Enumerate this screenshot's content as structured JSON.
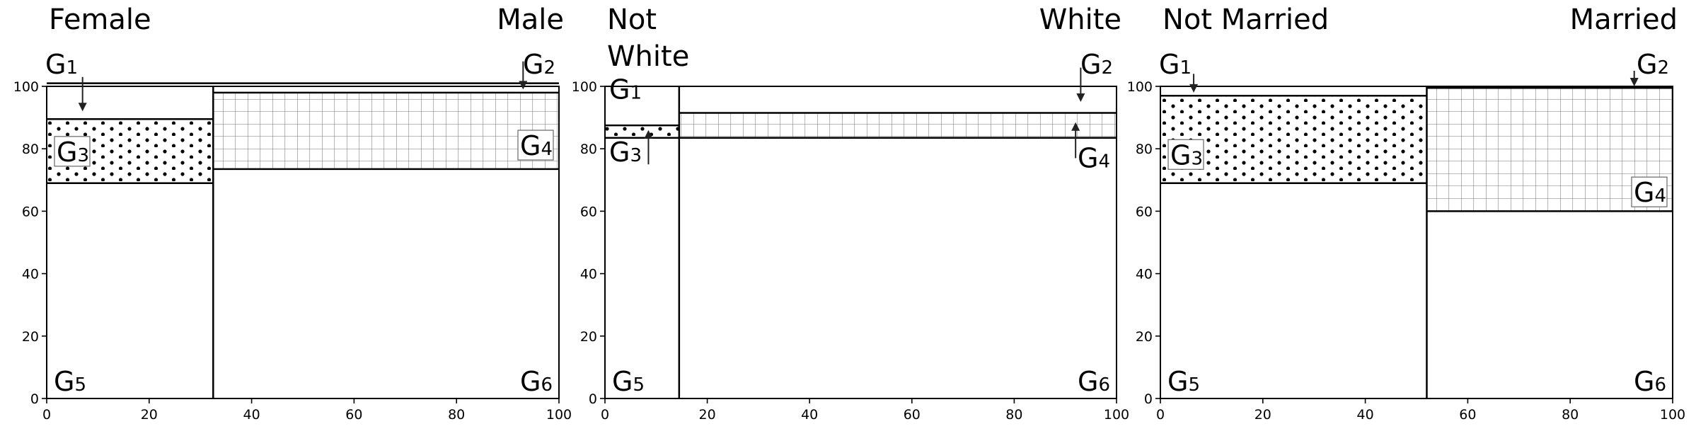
{
  "chart_data": [
    {
      "type": "mosaic",
      "categories": [
        "Female",
        "Male"
      ],
      "split_x": 32.5,
      "xlim": [
        0,
        100
      ],
      "ylim": [
        0,
        100
      ],
      "x_ticks": [
        0,
        20,
        40,
        60,
        80,
        100
      ],
      "y_ticks": [
        0,
        20,
        40,
        60,
        80,
        100
      ],
      "bands": [
        {
          "side": "left",
          "pattern": "dots",
          "y_low": 69,
          "y_high": 89.5
        },
        {
          "side": "right",
          "pattern": "grid",
          "y_low": 73.5,
          "y_high": 98
        }
      ],
      "top_line_y": 101,
      "labels": [
        {
          "main": "G",
          "sub": "1",
          "anchor": "left-top",
          "boxed": false,
          "arrow": {
            "x": 7,
            "from": 103,
            "to": 92
          }
        },
        {
          "main": "G",
          "sub": "2",
          "anchor": "right-top",
          "boxed": false,
          "arrow": {
            "x": 93,
            "from": 108,
            "to": 99
          }
        },
        {
          "main": "G",
          "sub": "3",
          "anchor": "left-band",
          "boxed": true,
          "y": 76
        },
        {
          "main": "G",
          "sub": "4",
          "anchor": "right-band",
          "boxed": true,
          "y": 78
        },
        {
          "main": "G",
          "sub": "5",
          "anchor": "left-bottom",
          "boxed": false
        },
        {
          "main": "G",
          "sub": "6",
          "anchor": "right-bottom",
          "boxed": false
        }
      ]
    },
    {
      "type": "mosaic",
      "categories": [
        "Not\nWhite",
        "White"
      ],
      "split_x": 14.5,
      "xlim": [
        0,
        100
      ],
      "ylim": [
        0,
        100
      ],
      "x_ticks": [
        0,
        20,
        40,
        60,
        80,
        100
      ],
      "y_ticks": [
        0,
        20,
        40,
        60,
        80,
        100
      ],
      "bands": [
        {
          "side": "left",
          "pattern": "dots",
          "y_low": 83.5,
          "y_high": 87.5
        },
        {
          "side": "right",
          "pattern": "grid",
          "y_low": 83.5,
          "y_high": 91.5
        }
      ],
      "top_line_y": null,
      "labels": [
        {
          "main": "G",
          "sub": "1",
          "anchor": "left-upper",
          "boxed": false
        },
        {
          "main": "G",
          "sub": "2",
          "anchor": "right-top",
          "boxed": false,
          "arrow": {
            "x": 93,
            "from": 106,
            "to": 95
          }
        },
        {
          "main": "G",
          "sub": "3",
          "anchor": "left-band-below",
          "boxed": false,
          "arrow": {
            "x": 8.5,
            "from": 75,
            "to": 86
          }
        },
        {
          "main": "G",
          "sub": "4",
          "anchor": "right-band-below",
          "boxed": false,
          "arrow": {
            "x": 92,
            "from": 77,
            "to": 88.5
          }
        },
        {
          "main": "G",
          "sub": "5",
          "anchor": "left-bottom",
          "boxed": false
        },
        {
          "main": "G",
          "sub": "6",
          "anchor": "right-bottom",
          "boxed": false
        }
      ]
    },
    {
      "type": "mosaic",
      "categories": [
        "Not Married",
        "Married"
      ],
      "split_x": 52,
      "xlim": [
        0,
        100
      ],
      "ylim": [
        0,
        100
      ],
      "x_ticks": [
        0,
        20,
        40,
        60,
        80,
        100
      ],
      "y_ticks": [
        0,
        20,
        40,
        60,
        80,
        100
      ],
      "bands": [
        {
          "side": "left",
          "pattern": "dots",
          "y_low": 69,
          "y_high": 97
        },
        {
          "side": "right",
          "pattern": "grid",
          "y_low": 60,
          "y_high": 99.5
        }
      ],
      "top_line_y": null,
      "labels": [
        {
          "main": "G",
          "sub": "1",
          "anchor": "left-top",
          "boxed": false,
          "arrow": {
            "x": 6.5,
            "from": 104,
            "to": 98
          }
        },
        {
          "main": "G",
          "sub": "2",
          "anchor": "right-top",
          "boxed": false,
          "arrow": {
            "x": 92.5,
            "from": 105,
            "to": 100
          }
        },
        {
          "main": "G",
          "sub": "3",
          "anchor": "left-band",
          "boxed": true,
          "y": 75
        },
        {
          "main": "G",
          "sub": "4",
          "anchor": "right-band",
          "boxed": true,
          "y": 63
        },
        {
          "main": "G",
          "sub": "5",
          "anchor": "left-bottom",
          "boxed": false
        },
        {
          "main": "G",
          "sub": "6",
          "anchor": "right-bottom",
          "boxed": false
        }
      ]
    }
  ]
}
